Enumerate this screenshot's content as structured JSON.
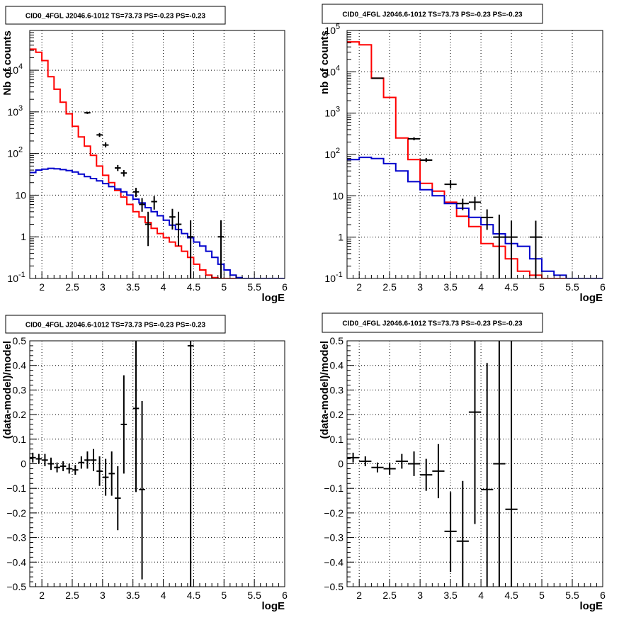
{
  "chart_data": [
    {
      "panel": "top-left",
      "type": "line",
      "title": "CID0_4FGL J2046.6-1012 TS=73.73 PS=-0.23 PS=-0.23",
      "xlabel": "logE",
      "ylabel": "Nb of counts",
      "xlim": [
        1.8,
        6.0
      ],
      "ylim": [
        0.1,
        90000
      ],
      "yscale": "log",
      "grid": true,
      "xticks": [
        "2",
        "2.5",
        "3",
        "3.5",
        "4",
        "4.5",
        "5",
        "5.5",
        "6"
      ],
      "yticks": [
        {
          "v": 0.1,
          "t": "10",
          "e": "-1"
        },
        {
          "v": 1,
          "t": "1"
        },
        {
          "v": 10,
          "t": "10"
        },
        {
          "v": 100,
          "t": "10",
          "e": "2"
        },
        {
          "v": 1000,
          "t": "10",
          "e": "3"
        },
        {
          "v": 10000,
          "t": "10",
          "e": "4"
        }
      ],
      "series": [
        {
          "color": "#ff0000",
          "style": "step",
          "binwidth": 0.1,
          "x0": 1.8,
          "values": [
            32000,
            27000,
            17000,
            7000,
            3500,
            1700,
            900,
            450,
            250,
            150,
            90,
            50,
            30,
            20,
            13,
            9,
            6,
            4,
            3,
            2.2,
            1.6,
            1.2,
            0.95,
            0.75,
            0.6,
            0.45,
            0.32,
            0.22,
            0.16,
            0.12,
            0.105,
            0.1,
            0.1,
            0.1,
            0.1,
            0.1,
            0.1,
            0.1,
            0.1,
            0.1,
            0.1,
            0.1
          ]
        },
        {
          "color": "#0000cc",
          "style": "step",
          "binwidth": 0.1,
          "x0": 1.8,
          "values": [
            35,
            40,
            42,
            44,
            43,
            41,
            39,
            36,
            32,
            28,
            25,
            22,
            19,
            16,
            14,
            12,
            10,
            8,
            6.5,
            5,
            4,
            3.2,
            2.5,
            1.9,
            1.5,
            1.2,
            0.95,
            0.75,
            0.6,
            0.45,
            0.32,
            0.22,
            0.16,
            0.12,
            0.105,
            0.1,
            0.1,
            0.1,
            0.1,
            0.1,
            0.1,
            0.1
          ]
        }
      ],
      "points": [
        {
          "x": 2.75,
          "y": 950,
          "lo": 890,
          "hi": 1010,
          "xe": 0.05
        },
        {
          "x": 2.95,
          "y": 280,
          "lo": 250,
          "hi": 310,
          "xe": 0.05
        },
        {
          "x": 3.05,
          "y": 160,
          "lo": 140,
          "hi": 185,
          "xe": 0.05
        },
        {
          "x": 3.25,
          "y": 45,
          "lo": 38,
          "hi": 53,
          "xe": 0.05
        },
        {
          "x": 3.35,
          "y": 34,
          "lo": 28,
          "hi": 40,
          "xe": 0.05
        },
        {
          "x": 3.55,
          "y": 12,
          "lo": 9,
          "hi": 15,
          "xe": 0.05
        },
        {
          "x": 3.65,
          "y": 6,
          "lo": 4,
          "hi": 8.5,
          "xe": 0.05
        },
        {
          "x": 3.75,
          "y": 2,
          "lo": 0.6,
          "hi": 4,
          "xe": 0.05
        },
        {
          "x": 3.85,
          "y": 7,
          "lo": 4.5,
          "hi": 9.5,
          "xe": 0.05
        },
        {
          "x": 4.15,
          "y": 3,
          "lo": 1.5,
          "hi": 4.7,
          "xe": 0.05
        },
        {
          "x": 4.25,
          "y": 2,
          "lo": 0.6,
          "hi": 4,
          "xe": 0.05
        },
        {
          "x": 4.45,
          "y": 1,
          "lo": 0.1,
          "hi": 2.5,
          "xe": 0.05
        },
        {
          "x": 4.95,
          "y": 1,
          "lo": 0.1,
          "hi": 2.5,
          "xe": 0.05
        }
      ]
    },
    {
      "panel": "top-right",
      "type": "line",
      "title": "CID0_4FGL J2046.6-1012 TS=73.73 PS=-0.23 PS=-0.23",
      "xlabel": "logE",
      "ylabel": "nb of counts",
      "xlim": [
        1.8,
        6.0
      ],
      "ylim": [
        0.1,
        100000
      ],
      "yscale": "log",
      "grid": true,
      "xticks": [
        "2",
        "2.5",
        "3",
        "3.5",
        "4",
        "4.5",
        "5",
        "5.5",
        "6"
      ],
      "yticks": [
        {
          "v": 0.1,
          "t": "10",
          "e": "-1"
        },
        {
          "v": 1,
          "t": "1"
        },
        {
          "v": 10,
          "t": "10"
        },
        {
          "v": 100,
          "t": "10",
          "e": "2"
        },
        {
          "v": 1000,
          "t": "10",
          "e": "3"
        },
        {
          "v": 10000,
          "t": "10",
          "e": "4"
        },
        {
          "v": 100000,
          "t": "10",
          "e": "5"
        }
      ],
      "series": [
        {
          "color": "#ff0000",
          "style": "step",
          "binwidth": 0.2,
          "x0": 1.8,
          "values": [
            53000,
            45000,
            7000,
            2400,
            250,
            75,
            20,
            13,
            7,
            3.2,
            1.8,
            0.7,
            0.6,
            0.3,
            0.15,
            0.12,
            0.1,
            0.1,
            0.1,
            0.1,
            0.1
          ]
        },
        {
          "color": "#0000cc",
          "style": "step",
          "binwidth": 0.2,
          "x0": 1.8,
          "values": [
            75,
            85,
            80,
            60,
            40,
            22,
            14,
            10,
            6.5,
            5,
            3,
            2,
            1.2,
            0.7,
            0.6,
            0.3,
            0.15,
            0.12,
            0.1,
            0.1,
            0.1
          ]
        }
      ],
      "points": [
        {
          "x": 2.3,
          "y": 7000,
          "lo": 6800,
          "hi": 7200,
          "xe": 0.1
        },
        {
          "x": 2.9,
          "y": 240,
          "lo": 220,
          "hi": 260,
          "xe": 0.1
        },
        {
          "x": 3.1,
          "y": 73,
          "lo": 65,
          "hi": 82,
          "xe": 0.1
        },
        {
          "x": 3.5,
          "y": 19,
          "lo": 15,
          "hi": 24,
          "xe": 0.1
        },
        {
          "x": 3.7,
          "y": 6.5,
          "lo": 4.5,
          "hi": 8.5,
          "xe": 0.1
        },
        {
          "x": 3.9,
          "y": 7,
          "lo": 4.5,
          "hi": 9.5,
          "xe": 0.1
        },
        {
          "x": 4.1,
          "y": 3,
          "lo": 1.5,
          "hi": 4.7,
          "xe": 0.1
        },
        {
          "x": 4.3,
          "y": 1,
          "lo": 0.1,
          "hi": 3.5,
          "xe": 0.1
        },
        {
          "x": 4.5,
          "y": 1,
          "lo": 0.1,
          "hi": 2.5,
          "xe": 0.1
        },
        {
          "x": 4.9,
          "y": 1,
          "lo": 0.1,
          "hi": 2.5,
          "xe": 0.1
        }
      ]
    },
    {
      "panel": "bottom-left",
      "type": "scatter",
      "title": "CID0_4FGL J2046.6-1012 TS=73.73 PS=-0.23 PS=-0.23",
      "xlabel": "logE",
      "ylabel": "(data-model)/model",
      "xlim": [
        1.8,
        6.0
      ],
      "ylim": [
        -0.5,
        0.5
      ],
      "yscale": "linear",
      "grid": true,
      "xticks": [
        "2",
        "2.5",
        "3",
        "3.5",
        "4",
        "4.5",
        "5",
        "5.5",
        "6"
      ],
      "yticks": [
        {
          "v": -0.5,
          "t": "−0.5"
        },
        {
          "v": -0.4,
          "t": "−0.4"
        },
        {
          "v": -0.3,
          "t": "−0.3"
        },
        {
          "v": -0.2,
          "t": "−0.2"
        },
        {
          "v": -0.1,
          "t": "−0.1"
        },
        {
          "v": 0,
          "t": "0"
        },
        {
          "v": 0.1,
          "t": "0.1"
        },
        {
          "v": 0.2,
          "t": "0.2"
        },
        {
          "v": 0.3,
          "t": "0.3"
        },
        {
          "v": 0.4,
          "t": "0.4"
        },
        {
          "v": 0.5,
          "t": "0.5"
        }
      ],
      "series": [],
      "points": [
        {
          "x": 1.85,
          "y": 0.025,
          "lo": 0.005,
          "hi": 0.045,
          "xe": 0.05
        },
        {
          "x": 1.95,
          "y": 0.02,
          "lo": 0.0,
          "hi": 0.04,
          "xe": 0.05
        },
        {
          "x": 2.05,
          "y": 0.015,
          "lo": -0.01,
          "hi": 0.04,
          "xe": 0.05
        },
        {
          "x": 2.15,
          "y": 0.0,
          "lo": -0.025,
          "hi": 0.025,
          "xe": 0.05
        },
        {
          "x": 2.25,
          "y": -0.015,
          "lo": -0.035,
          "hi": 0.005,
          "xe": 0.05
        },
        {
          "x": 2.35,
          "y": -0.01,
          "lo": -0.03,
          "hi": 0.01,
          "xe": 0.05
        },
        {
          "x": 2.45,
          "y": -0.02,
          "lo": -0.04,
          "hi": 0.0,
          "xe": 0.05
        },
        {
          "x": 2.55,
          "y": -0.025,
          "lo": -0.045,
          "hi": -0.005,
          "xe": 0.05
        },
        {
          "x": 2.65,
          "y": 0.005,
          "lo": -0.02,
          "hi": 0.03,
          "xe": 0.05
        },
        {
          "x": 2.75,
          "y": 0.015,
          "lo": -0.02,
          "hi": 0.05,
          "xe": 0.05
        },
        {
          "x": 2.85,
          "y": 0.015,
          "lo": -0.03,
          "hi": 0.06,
          "xe": 0.05
        },
        {
          "x": 2.95,
          "y": -0.03,
          "lo": -0.09,
          "hi": 0.03,
          "xe": 0.05
        },
        {
          "x": 3.05,
          "y": -0.055,
          "lo": -0.13,
          "hi": 0.02,
          "xe": 0.05
        },
        {
          "x": 3.15,
          "y": -0.04,
          "lo": -0.13,
          "hi": 0.05,
          "xe": 0.05
        },
        {
          "x": 3.25,
          "y": -0.14,
          "lo": -0.27,
          "hi": -0.01,
          "xe": 0.05
        },
        {
          "x": 3.35,
          "y": 0.16,
          "lo": -0.04,
          "hi": 0.36,
          "xe": 0.05
        },
        {
          "x": 3.55,
          "y": 0.225,
          "lo": -0.115,
          "hi": 0.5,
          "xe": 0.05
        },
        {
          "x": 3.65,
          "y": -0.105,
          "lo": -0.47,
          "hi": 0.255,
          "xe": 0.05
        },
        {
          "x": 4.45,
          "y": 0.48,
          "lo": -0.5,
          "hi": 0.5,
          "xe": 0.05
        }
      ]
    },
    {
      "panel": "bottom-right",
      "type": "scatter",
      "title": "CID0_4FGL J2046.6-1012 TS=73.73 PS=-0.23 PS=-0.23",
      "xlabel": "logE",
      "ylabel": "(data-model)/model",
      "xlim": [
        1.8,
        6.0
      ],
      "ylim": [
        -0.5,
        0.5
      ],
      "yscale": "linear",
      "grid": true,
      "xticks": [
        "2",
        "2.5",
        "3",
        "3.5",
        "4",
        "4.5",
        "5",
        "5.5",
        "6"
      ],
      "yticks": [
        {
          "v": -0.5,
          "t": "−0.5"
        },
        {
          "v": -0.4,
          "t": "−0.4"
        },
        {
          "v": -0.3,
          "t": "−0.3"
        },
        {
          "v": -0.2,
          "t": "−0.2"
        },
        {
          "v": -0.1,
          "t": "−0.1"
        },
        {
          "v": 0,
          "t": "0"
        },
        {
          "v": 0.1,
          "t": "0.1"
        },
        {
          "v": 0.2,
          "t": "0.2"
        },
        {
          "v": 0.3,
          "t": "0.3"
        },
        {
          "v": 0.4,
          "t": "0.4"
        },
        {
          "v": 0.5,
          "t": "0.5"
        }
      ],
      "series": [],
      "points": [
        {
          "x": 1.9,
          "y": 0.025,
          "lo": 0.005,
          "hi": 0.045,
          "xe": 0.1
        },
        {
          "x": 2.1,
          "y": 0.01,
          "lo": -0.01,
          "hi": 0.03,
          "xe": 0.1
        },
        {
          "x": 2.3,
          "y": -0.015,
          "lo": -0.035,
          "hi": 0.005,
          "xe": 0.1
        },
        {
          "x": 2.5,
          "y": -0.02,
          "lo": -0.045,
          "hi": 0.005,
          "xe": 0.1
        },
        {
          "x": 2.7,
          "y": 0.01,
          "lo": -0.02,
          "hi": 0.04,
          "xe": 0.1
        },
        {
          "x": 2.9,
          "y": 0.0,
          "lo": -0.05,
          "hi": 0.05,
          "xe": 0.1
        },
        {
          "x": 3.1,
          "y": -0.045,
          "lo": -0.11,
          "hi": 0.02,
          "xe": 0.1
        },
        {
          "x": 3.3,
          "y": -0.03,
          "lo": -0.14,
          "hi": 0.08,
          "xe": 0.1
        },
        {
          "x": 3.5,
          "y": -0.275,
          "lo": -0.44,
          "hi": -0.115,
          "xe": 0.1
        },
        {
          "x": 3.7,
          "y": -0.315,
          "lo": -0.5,
          "hi": -0.07,
          "xe": 0.1
        },
        {
          "x": 3.9,
          "y": 0.21,
          "lo": -0.245,
          "hi": 0.5,
          "xe": 0.1
        },
        {
          "x": 4.1,
          "y": -0.105,
          "lo": -0.5,
          "hi": 0.41,
          "xe": 0.1
        },
        {
          "x": 4.3,
          "y": 0.0,
          "lo": -0.5,
          "hi": 0.5,
          "xe": 0.1
        },
        {
          "x": 4.5,
          "y": -0.185,
          "lo": -0.5,
          "hi": 0.5,
          "xe": 0.1
        }
      ]
    }
  ]
}
